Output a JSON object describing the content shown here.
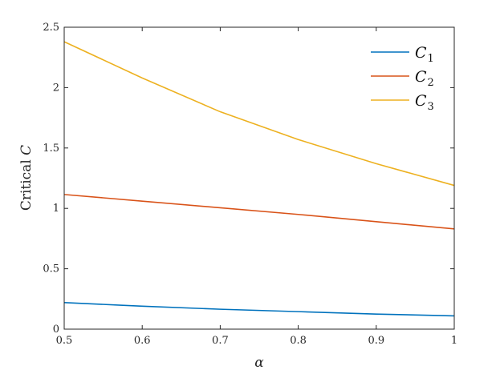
{
  "chart_data": {
    "type": "line",
    "xlabel": "α",
    "ylabel": "Critical C",
    "ylabel_parts": {
      "text": "Critical",
      "symbol": "C"
    },
    "xlim": [
      0.5,
      1.0
    ],
    "ylim": [
      0,
      2.5
    ],
    "xticks": [
      0.5,
      0.6,
      0.7,
      0.8,
      0.9,
      1.0
    ],
    "xtick_labels": [
      "0.5",
      "0.6",
      "0.7",
      "0.8",
      "0.9",
      "1"
    ],
    "yticks": [
      0,
      0.5,
      1,
      1.5,
      2,
      2.5
    ],
    "ytick_labels": [
      "0",
      "0.5",
      "1",
      "1.5",
      "2",
      "2.5"
    ],
    "grid": false,
    "legend_position": "top-right",
    "series": [
      {
        "name": "C1",
        "legend_symbol": "C",
        "legend_subscript": "1",
        "color": "#0072BD",
        "x": [
          0.5,
          0.6,
          0.7,
          0.8,
          0.9,
          1.0
        ],
        "y": [
          0.22,
          0.19,
          0.165,
          0.145,
          0.125,
          0.11
        ]
      },
      {
        "name": "C2",
        "legend_symbol": "C",
        "legend_subscript": "2",
        "color": "#D95319",
        "x": [
          0.5,
          0.6,
          0.7,
          0.8,
          0.9,
          1.0
        ],
        "y": [
          1.115,
          1.06,
          1.005,
          0.95,
          0.89,
          0.83
        ]
      },
      {
        "name": "C3",
        "legend_symbol": "C",
        "legend_subscript": "3",
        "color": "#EDB120",
        "x": [
          0.5,
          0.6,
          0.7,
          0.8,
          0.9,
          1.0
        ],
        "y": [
          2.38,
          2.08,
          1.8,
          1.57,
          1.37,
          1.19
        ]
      }
    ]
  }
}
